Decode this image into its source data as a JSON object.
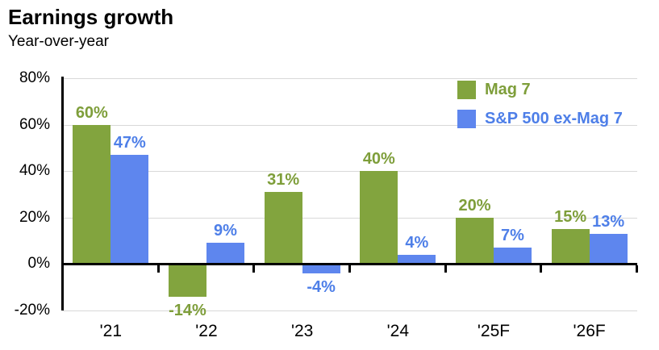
{
  "title": "Earnings growth",
  "subtitle": "Year-over-year",
  "colors": {
    "mag7_green": "#82A43E",
    "sp500_blue": "#5E86EE",
    "gridline_gray": "#D8D8D8",
    "axis_black": "#000000"
  },
  "legend": {
    "items": [
      {
        "label": "Mag 7",
        "color": "#82A43E",
        "text_color": "#7E9E3A",
        "icon": "green-square-swatch"
      },
      {
        "label": "S&P 500 ex-Mag 7",
        "color": "#5E86EE",
        "text_color": "#4E7FE8",
        "icon": "blue-square-swatch"
      }
    ]
  },
  "chart_data": {
    "type": "bar",
    "title": "Earnings growth",
    "subtitle": "Year-over-year",
    "categories": [
      "'21",
      "'22",
      "'23",
      "'24",
      "'25F",
      "'26F"
    ],
    "series": [
      {
        "name": "Mag 7",
        "color": "#82A43E",
        "label_color": "#7E9E3A",
        "values": [
          60,
          -14,
          31,
          40,
          20,
          15
        ],
        "labels": [
          "60%",
          "-14%",
          "31%",
          "40%",
          "20%",
          "15%"
        ]
      },
      {
        "name": "S&P 500 ex-Mag 7",
        "color": "#5E86EE",
        "label_color": "#4E7FE8",
        "values": [
          47,
          9,
          -4,
          4,
          7,
          13
        ],
        "labels": [
          "47%",
          "9%",
          "-4%",
          "4%",
          "7%",
          "13%"
        ]
      }
    ],
    "xlabel": "",
    "ylabel": "",
    "ylim": [
      -20,
      80
    ],
    "yticks": [
      {
        "value": 80,
        "label": "80%"
      },
      {
        "value": 60,
        "label": "60%"
      },
      {
        "value": 40,
        "label": "40%"
      },
      {
        "value": 20,
        "label": "20%"
      },
      {
        "value": 0,
        "label": "0%"
      },
      {
        "value": -20,
        "label": "-20%"
      }
    ],
    "grid": true,
    "legend_position": "top-right"
  }
}
